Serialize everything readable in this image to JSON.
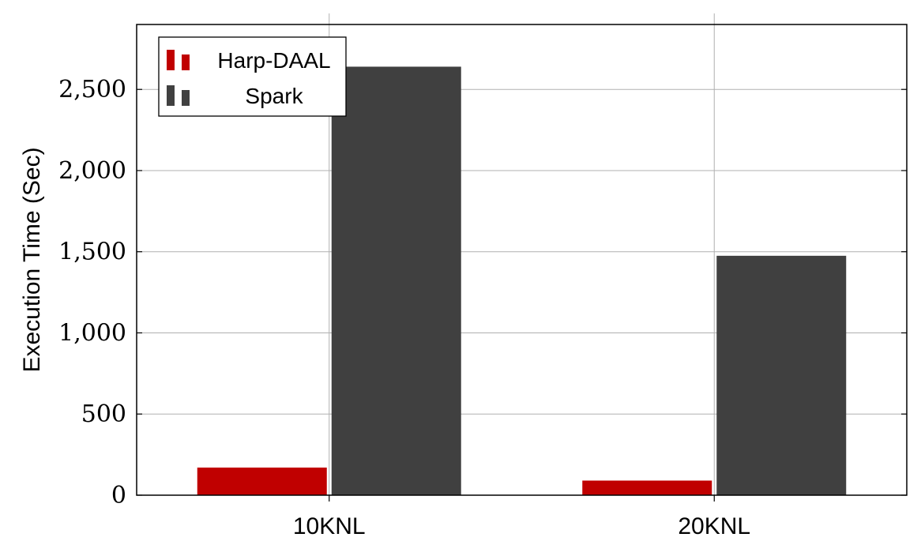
{
  "chart_data": {
    "type": "bar",
    "categories": [
      "10KNL",
      "20KNL"
    ],
    "series": [
      {
        "name": "Harp-DAAL",
        "values": [
          170,
          90
        ],
        "color": "#c00000"
      },
      {
        "name": "Spark",
        "values": [
          2640,
          1475
        ],
        "color": "#404040"
      }
    ],
    "ylabel": "Execution Time (Sec)",
    "xlabel": "",
    "ylim": [
      0,
      2900
    ],
    "yticks": [
      0,
      500,
      1000,
      1500,
      2000,
      2500
    ],
    "ytick_labels": [
      "0",
      "500",
      "1,000",
      "1,500",
      "2,000",
      "2,500"
    ],
    "grid": true,
    "legend_position": "top-left"
  }
}
